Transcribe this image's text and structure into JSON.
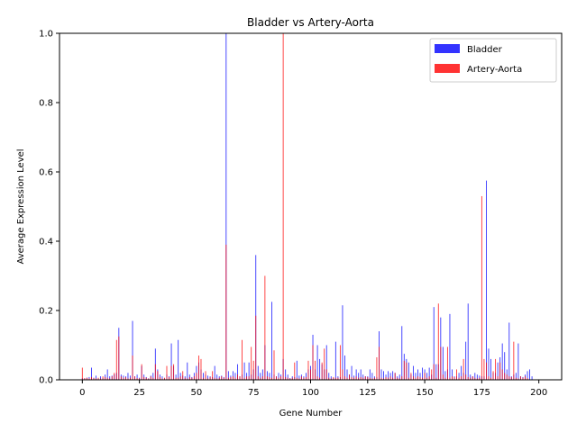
{
  "chart_data": {
    "type": "bar",
    "title": "Bladder vs Artery-Aorta",
    "xlabel": "Gene Number",
    "ylabel": "Average Expression Level",
    "xlim": [
      -10,
      210
    ],
    "ylim": [
      0,
      1.0
    ],
    "xticks": [
      0,
      25,
      50,
      75,
      100,
      125,
      150,
      175,
      200
    ],
    "yticks": [
      0.0,
      0.2,
      0.4,
      0.6,
      0.8,
      1.0
    ],
    "legend_position": "top-right",
    "grid": false,
    "colors": {
      "Bladder": "#0000ff",
      "Artery-Aorta": "#ff0000"
    },
    "opacity": 0.8,
    "series": [
      {
        "name": "Bladder",
        "values": [
          0.005,
          0.004,
          0.006,
          0.008,
          0.035,
          0.006,
          0.012,
          0.004,
          0.01,
          0.006,
          0.015,
          0.03,
          0.01,
          0.012,
          0.016,
          0.02,
          0.15,
          0.015,
          0.012,
          0.01,
          0.02,
          0.012,
          0.17,
          0.01,
          0.015,
          0.006,
          0.04,
          0.015,
          0.008,
          0.004,
          0.012,
          0.02,
          0.09,
          0.03,
          0.015,
          0.01,
          0.004,
          0.015,
          0.01,
          0.105,
          0.04,
          0.015,
          0.115,
          0.02,
          0.012,
          0.01,
          0.05,
          0.015,
          0.008,
          0.02,
          0.04,
          0.05,
          0.03,
          0.02,
          0.015,
          0.012,
          0.01,
          0.008,
          0.04,
          0.015,
          0.01,
          0.012,
          0.008,
          1.0,
          0.025,
          0.012,
          0.025,
          0.02,
          0.045,
          0.01,
          0.015,
          0.05,
          0.02,
          0.05,
          0.015,
          0.03,
          0.36,
          0.04,
          0.02,
          0.03,
          0.1,
          0.025,
          0.02,
          0.225,
          0.015,
          0.01,
          0.02,
          0.015,
          0.06,
          0.03,
          0.015,
          0.005,
          0.01,
          0.008,
          0.055,
          0.012,
          0.015,
          0.01,
          0.02,
          0.03,
          0.04,
          0.13,
          0.03,
          0.1,
          0.06,
          0.045,
          0.03,
          0.1,
          0.02,
          0.01,
          0.005,
          0.11,
          0.01,
          0.008,
          0.215,
          0.07,
          0.03,
          0.015,
          0.04,
          0.012,
          0.03,
          0.02,
          0.03,
          0.015,
          0.01,
          0.01,
          0.03,
          0.02,
          0.01,
          0.008,
          0.14,
          0.03,
          0.025,
          0.015,
          0.025,
          0.02,
          0.025,
          0.02,
          0.01,
          0.015,
          0.155,
          0.075,
          0.06,
          0.05,
          0.015,
          0.04,
          0.02,
          0.03,
          0.02,
          0.035,
          0.03,
          0.02,
          0.035,
          0.015,
          0.21,
          0.045,
          0.045,
          0.18,
          0.095,
          0.025,
          0.03,
          0.19,
          0.03,
          0.01,
          0.01,
          0.02,
          0.04,
          0.02,
          0.11,
          0.22,
          0.015,
          0.01,
          0.02,
          0.015,
          0.012,
          0.01,
          0.01,
          0.575,
          0.09,
          0.06,
          0.02,
          0.02,
          0.05,
          0.065,
          0.105,
          0.08,
          0.03,
          0.165,
          0.01,
          0.015,
          0.02,
          0.105,
          0.01,
          0.008,
          0.015,
          0.025,
          0.03,
          0.01
        ],
        "note": ""
      },
      {
        "name": "Artery-Aorta",
        "values": [
          0.035,
          0.005,
          0.006,
          0.004,
          0.008,
          0.005,
          0.004,
          0.006,
          0.004,
          0.01,
          0.008,
          0.006,
          0.004,
          0.01,
          0.02,
          0.115,
          0.125,
          0.01,
          0.006,
          0.008,
          0.004,
          0.006,
          0.07,
          0.01,
          0.005,
          0.004,
          0.045,
          0.008,
          0.006,
          0.004,
          0.01,
          0.006,
          0.045,
          0.025,
          0.008,
          0.004,
          0.006,
          0.04,
          0.008,
          0.04,
          0.045,
          0.006,
          0.006,
          0.01,
          0.025,
          0.006,
          0.004,
          0.008,
          0.006,
          0.01,
          0.02,
          0.07,
          0.06,
          0.006,
          0.025,
          0.004,
          0.008,
          0.025,
          0.006,
          0.004,
          0.006,
          0.01,
          0.006,
          0.39,
          0.006,
          0.008,
          0.01,
          0.006,
          0.015,
          0.01,
          0.115,
          0.006,
          0.01,
          0.01,
          0.095,
          0.055,
          0.185,
          0.01,
          0.006,
          0.01,
          0.3,
          0.01,
          0.008,
          0.006,
          0.085,
          0.01,
          0.006,
          0.01,
          1.0,
          0.008,
          0.006,
          0.004,
          0.006,
          0.05,
          0.006,
          0.004,
          0.01,
          0.006,
          0.008,
          0.055,
          0.03,
          0.1,
          0.055,
          0.01,
          0.006,
          0.05,
          0.09,
          0.03,
          0.006,
          0.004,
          0.008,
          0.006,
          0.006,
          0.1,
          0.03,
          0.01,
          0.006,
          0.015,
          0.008,
          0.006,
          0.01,
          0.006,
          0.008,
          0.006,
          0.01,
          0.008,
          0.006,
          0.004,
          0.006,
          0.065,
          0.095,
          0.006,
          0.004,
          0.008,
          0.006,
          0.01,
          0.006,
          0.02,
          0.006,
          0.004,
          0.01,
          0.055,
          0.05,
          0.006,
          0.02,
          0.01,
          0.006,
          0.01,
          0.008,
          0.006,
          0.02,
          0.006,
          0.01,
          0.03,
          0.045,
          0.006,
          0.22,
          0.095,
          0.015,
          0.006,
          0.095,
          0.006,
          0.01,
          0.008,
          0.03,
          0.006,
          0.01,
          0.06,
          0.015,
          0.008,
          0.006,
          0.01,
          0.006,
          0.004,
          0.006,
          0.53,
          0.06,
          0.05,
          0.01,
          0.006,
          0.025,
          0.06,
          0.01,
          0.05,
          0.03,
          0.02,
          0.015,
          0.01,
          0.008,
          0.11,
          0.006,
          0.004,
          0.01,
          0.006,
          0.01,
          0.005
        ]
      }
    ]
  }
}
